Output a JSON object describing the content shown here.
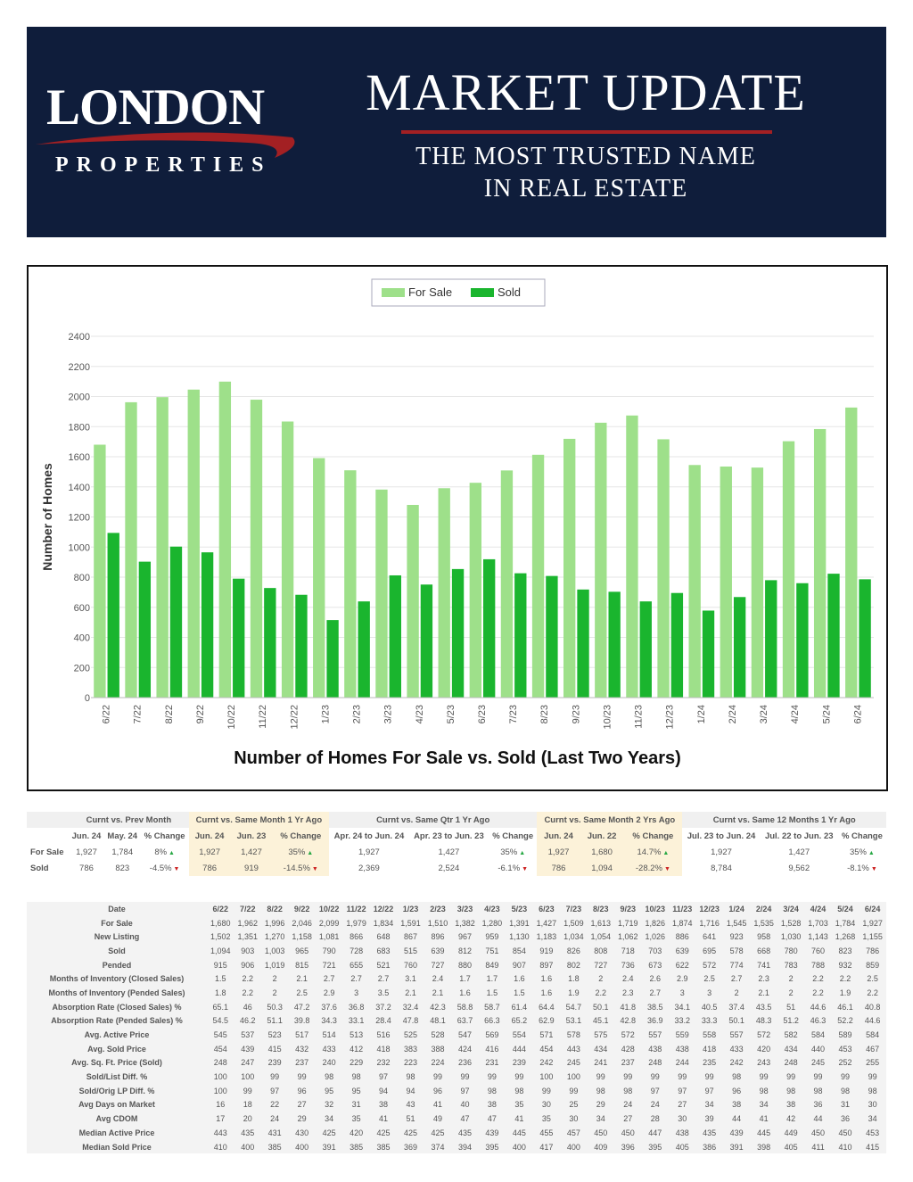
{
  "header": {
    "logo_main": "LONDON",
    "logo_sub": "PROPERTIES",
    "title": "MARKET UPDATE",
    "tagline_line1": "THE MOST TRUSTED NAME",
    "tagline_line2": "IN REAL ESTATE",
    "colors": {
      "background": "#0f1d3b",
      "accent": "#a32023"
    }
  },
  "chart_data": {
    "type": "bar",
    "title": "Number of Homes For Sale vs. Sold (Last Two Years)",
    "ylabel": "Number of Homes",
    "xlabel": "",
    "ylim": [
      0,
      2400
    ],
    "yticks": [
      0,
      200,
      400,
      600,
      800,
      1000,
      1200,
      1400,
      1600,
      1800,
      2000,
      2200,
      2400
    ],
    "grid": true,
    "legend_position": "top-center",
    "categories": [
      "6/22",
      "7/22",
      "8/22",
      "9/22",
      "10/22",
      "11/22",
      "12/22",
      "1/23",
      "2/23",
      "3/23",
      "4/23",
      "5/23",
      "6/23",
      "7/23",
      "8/23",
      "9/23",
      "10/23",
      "11/23",
      "12/23",
      "1/24",
      "2/24",
      "3/24",
      "4/24",
      "5/24",
      "6/24"
    ],
    "series": [
      {
        "name": "For Sale",
        "color": "#9ee08a",
        "values": [
          1680,
          1962,
          1996,
          2046,
          2099,
          1979,
          1834,
          1591,
          1510,
          1382,
          1280,
          1391,
          1427,
          1509,
          1613,
          1719,
          1826,
          1874,
          1716,
          1545,
          1535,
          1528,
          1703,
          1784,
          1927
        ]
      },
      {
        "name": "Sold",
        "color": "#1ab52e",
        "values": [
          1094,
          903,
          1003,
          965,
          790,
          728,
          683,
          515,
          639,
          812,
          751,
          854,
          919,
          826,
          808,
          718,
          703,
          639,
          695,
          578,
          668,
          780,
          760,
          823,
          786
        ]
      }
    ]
  },
  "summary": {
    "groups": [
      "Curnt vs. Prev Month",
      "Curnt vs. Same Month 1 Yr Ago",
      "Curnt vs. Same Qtr 1 Yr Ago",
      "Curnt vs. Same Month 2 Yrs Ago",
      "Curnt vs. Same 12 Months 1 Yr Ago"
    ],
    "subheaders": [
      "Jun. 24",
      "May. 24",
      "% Change",
      "Jun. 24",
      "Jun. 23",
      "% Change",
      "Apr. 24 to Jun. 24",
      "Apr. 23 to Jun. 23",
      "% Change",
      "Jun. 24",
      "Jun. 22",
      "% Change",
      "Jul. 23 to Jun. 24",
      "Jul. 22 to Jun. 23",
      "% Change"
    ],
    "rows": [
      {
        "label": "For Sale",
        "cells": [
          "1,927",
          "1,784",
          "8%",
          "1,927",
          "1,427",
          "35%",
          "1,927",
          "1,427",
          "35%",
          "1,927",
          "1,680",
          "14.7%",
          "1,927",
          "1,427",
          "35%"
        ]
      },
      {
        "label": "Sold",
        "cells": [
          "786",
          "823",
          "-4.5%",
          "786",
          "919",
          "-14.5%",
          "2,369",
          "2,524",
          "-6.1%",
          "786",
          "1,094",
          "-28.2%",
          "8,784",
          "9,562",
          "-8.1%"
        ]
      }
    ],
    "trend_icons": {
      "up": "up-triangle-icon",
      "down": "down-triangle-icon",
      "up_glyph": "▲",
      "down_glyph": "▼"
    },
    "highlight_color": "#fcf2d9"
  },
  "detail": {
    "header": [
      "Date",
      "6/22",
      "7/22",
      "8/22",
      "9/22",
      "10/22",
      "11/22",
      "12/22",
      "1/23",
      "2/23",
      "3/23",
      "4/23",
      "5/23",
      "6/23",
      "7/23",
      "8/23",
      "9/23",
      "10/23",
      "11/23",
      "12/23",
      "1/24",
      "2/24",
      "3/24",
      "4/24",
      "5/24",
      "6/24"
    ],
    "rows": [
      [
        "For Sale",
        "1,680",
        "1,962",
        "1,996",
        "2,046",
        "2,099",
        "1,979",
        "1,834",
        "1,591",
        "1,510",
        "1,382",
        "1,280",
        "1,391",
        "1,427",
        "1,509",
        "1,613",
        "1,719",
        "1,826",
        "1,874",
        "1,716",
        "1,545",
        "1,535",
        "1,528",
        "1,703",
        "1,784",
        "1,927"
      ],
      [
        "New Listing",
        "1,502",
        "1,351",
        "1,270",
        "1,158",
        "1,081",
        "866",
        "648",
        "867",
        "896",
        "967",
        "959",
        "1,130",
        "1,183",
        "1,034",
        "1,054",
        "1,062",
        "1,026",
        "886",
        "641",
        "923",
        "958",
        "1,030",
        "1,143",
        "1,268",
        "1,155"
      ],
      [
        "Sold",
        "1,094",
        "903",
        "1,003",
        "965",
        "790",
        "728",
        "683",
        "515",
        "639",
        "812",
        "751",
        "854",
        "919",
        "826",
        "808",
        "718",
        "703",
        "639",
        "695",
        "578",
        "668",
        "780",
        "760",
        "823",
        "786"
      ],
      [
        "Pended",
        "915",
        "906",
        "1,019",
        "815",
        "721",
        "655",
        "521",
        "760",
        "727",
        "880",
        "849",
        "907",
        "897",
        "802",
        "727",
        "736",
        "673",
        "622",
        "572",
        "774",
        "741",
        "783",
        "788",
        "932",
        "859"
      ],
      [
        "Months of Inventory (Closed Sales)",
        "1.5",
        "2.2",
        "2",
        "2.1",
        "2.7",
        "2.7",
        "2.7",
        "3.1",
        "2.4",
        "1.7",
        "1.7",
        "1.6",
        "1.6",
        "1.8",
        "2",
        "2.4",
        "2.6",
        "2.9",
        "2.5",
        "2.7",
        "2.3",
        "2",
        "2.2",
        "2.2",
        "2.5"
      ],
      [
        "Months of Inventory (Pended Sales)",
        "1.8",
        "2.2",
        "2",
        "2.5",
        "2.9",
        "3",
        "3.5",
        "2.1",
        "2.1",
        "1.6",
        "1.5",
        "1.5",
        "1.6",
        "1.9",
        "2.2",
        "2.3",
        "2.7",
        "3",
        "3",
        "2",
        "2.1",
        "2",
        "2.2",
        "1.9",
        "2.2"
      ],
      [
        "Absorption Rate (Closed Sales) %",
        "65.1",
        "46",
        "50.3",
        "47.2",
        "37.6",
        "36.8",
        "37.2",
        "32.4",
        "42.3",
        "58.8",
        "58.7",
        "61.4",
        "64.4",
        "54.7",
        "50.1",
        "41.8",
        "38.5",
        "34.1",
        "40.5",
        "37.4",
        "43.5",
        "51",
        "44.6",
        "46.1",
        "40.8"
      ],
      [
        "Absorption Rate (Pended Sales) %",
        "54.5",
        "46.2",
        "51.1",
        "39.8",
        "34.3",
        "33.1",
        "28.4",
        "47.8",
        "48.1",
        "63.7",
        "66.3",
        "65.2",
        "62.9",
        "53.1",
        "45.1",
        "42.8",
        "36.9",
        "33.2",
        "33.3",
        "50.1",
        "48.3",
        "51.2",
        "46.3",
        "52.2",
        "44.6"
      ],
      [
        "Avg. Active Price",
        "545",
        "537",
        "523",
        "517",
        "514",
        "513",
        "516",
        "525",
        "528",
        "547",
        "569",
        "554",
        "571",
        "578",
        "575",
        "572",
        "557",
        "559",
        "558",
        "557",
        "572",
        "582",
        "584",
        "589",
        "584"
      ],
      [
        "Avg. Sold Price",
        "454",
        "439",
        "415",
        "432",
        "433",
        "412",
        "418",
        "383",
        "388",
        "424",
        "416",
        "444",
        "454",
        "443",
        "434",
        "428",
        "438",
        "438",
        "418",
        "433",
        "420",
        "434",
        "440",
        "453",
        "467"
      ],
      [
        "Avg. Sq. Ft. Price (Sold)",
        "248",
        "247",
        "239",
        "237",
        "240",
        "229",
        "232",
        "223",
        "224",
        "236",
        "231",
        "239",
        "242",
        "245",
        "241",
        "237",
        "248",
        "244",
        "235",
        "242",
        "243",
        "248",
        "245",
        "252",
        "255"
      ],
      [
        "Sold/List Diff. %",
        "100",
        "100",
        "99",
        "99",
        "98",
        "98",
        "97",
        "98",
        "99",
        "99",
        "99",
        "99",
        "100",
        "100",
        "99",
        "99",
        "99",
        "99",
        "99",
        "98",
        "99",
        "99",
        "99",
        "99",
        "99"
      ],
      [
        "Sold/Orig LP Diff. %",
        "100",
        "99",
        "97",
        "96",
        "95",
        "95",
        "94",
        "94",
        "96",
        "97",
        "98",
        "98",
        "99",
        "99",
        "98",
        "98",
        "97",
        "97",
        "97",
        "96",
        "98",
        "98",
        "98",
        "98",
        "98"
      ],
      [
        "Avg Days on Market",
        "16",
        "18",
        "22",
        "27",
        "32",
        "31",
        "38",
        "43",
        "41",
        "40",
        "38",
        "35",
        "30",
        "25",
        "29",
        "24",
        "24",
        "27",
        "34",
        "38",
        "34",
        "38",
        "36",
        "31",
        "30"
      ],
      [
        "Avg CDOM",
        "17",
        "20",
        "24",
        "29",
        "34",
        "35",
        "41",
        "51",
        "49",
        "47",
        "47",
        "41",
        "35",
        "30",
        "34",
        "27",
        "28",
        "30",
        "39",
        "44",
        "41",
        "42",
        "44",
        "36",
        "34"
      ],
      [
        "Median Active Price",
        "443",
        "435",
        "431",
        "430",
        "425",
        "420",
        "425",
        "425",
        "425",
        "435",
        "439",
        "445",
        "455",
        "457",
        "450",
        "450",
        "447",
        "438",
        "435",
        "439",
        "445",
        "449",
        "450",
        "450",
        "453"
      ],
      [
        "Median Sold Price",
        "410",
        "400",
        "385",
        "400",
        "391",
        "385",
        "385",
        "369",
        "374",
        "394",
        "395",
        "400",
        "417",
        "400",
        "409",
        "396",
        "395",
        "405",
        "386",
        "391",
        "398",
        "405",
        "411",
        "410",
        "415"
      ]
    ]
  }
}
